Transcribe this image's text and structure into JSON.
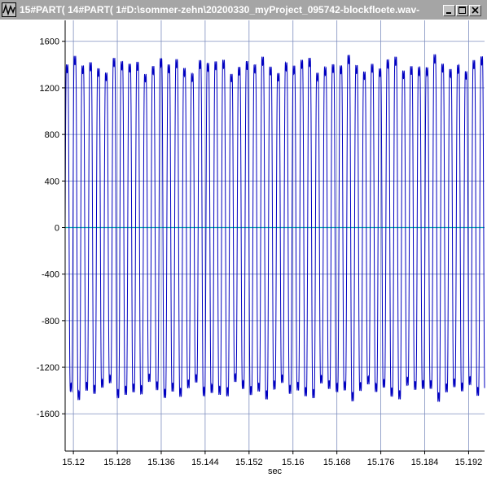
{
  "window": {
    "title": "15#PART( 14#PART( 1#D:\\sommer-zehn\\20200330_myProject_095742-blockfloete.wav-",
    "buttons": [
      "minimize",
      "maximize",
      "close"
    ],
    "icons": {
      "app": "waveform-app-icon",
      "minimize": "minimize-icon",
      "maximize": "maximize-icon",
      "close": "close-icon"
    }
  },
  "colors": {
    "titlebar": "#a5a5a5",
    "signal": "#0000c0",
    "grid": "#7f8fbf",
    "zero_line": "#00a8a8",
    "axis": "#000000"
  },
  "chart_data": {
    "type": "line",
    "title": "",
    "xlabel": "sec",
    "ylabel": "",
    "xlim": [
      15.1185,
      15.1949
    ],
    "ylim": [
      -1920,
      1780
    ],
    "x_ticks": [
      15.12,
      15.128,
      15.136,
      15.144,
      15.152,
      15.16,
      15.168,
      15.176,
      15.184,
      15.192
    ],
    "x_tick_labels": [
      "15.12",
      "15.128",
      "15.136",
      "15.144",
      "15.152",
      "15.16",
      "15.168",
      "15.176",
      "15.184",
      "15.192"
    ],
    "y_ticks": [
      1600,
      1200,
      800,
      400,
      0,
      -400,
      -800,
      -1200,
      -1600
    ],
    "y_tick_labels": [
      "1600",
      "1200",
      "800",
      "400",
      "0",
      "-400",
      "-800",
      "-1200",
      "-1600"
    ],
    "grid": true,
    "zero_line": true,
    "series": [
      {
        "type": "oscillation",
        "period_sec": 0.001425,
        "peak_max": 1720,
        "peak_min": -1730,
        "cycles": 53
      }
    ]
  }
}
